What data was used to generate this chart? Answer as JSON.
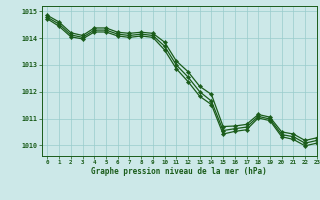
{
  "title": "Graphe pression niveau de la mer (hPa)",
  "background_color": "#cce8e8",
  "grid_color": "#99cccc",
  "line_color": "#1a5c1a",
  "marker_color": "#1a5c1a",
  "xlim": [
    -0.5,
    23
  ],
  "ylim": [
    1009.6,
    1015.2
  ],
  "yticks": [
    1010,
    1011,
    1012,
    1013,
    1014,
    1015
  ],
  "xticks": [
    0,
    1,
    2,
    3,
    4,
    5,
    6,
    7,
    8,
    9,
    10,
    11,
    12,
    13,
    14,
    15,
    16,
    17,
    18,
    19,
    20,
    21,
    22,
    23
  ],
  "series1_x": [
    0,
    1,
    2,
    3,
    4,
    5,
    6,
    7,
    8,
    9,
    10,
    11,
    12,
    13,
    14,
    15,
    16,
    17,
    18,
    19,
    20,
    21,
    22,
    23
  ],
  "series1_y": [
    1014.85,
    1014.6,
    1014.2,
    1014.1,
    1014.38,
    1014.38,
    1014.22,
    1014.18,
    1014.22,
    1014.18,
    1013.85,
    1013.15,
    1012.75,
    1012.2,
    1011.9,
    1010.7,
    1010.72,
    1010.78,
    1011.15,
    1011.05,
    1010.5,
    1010.42,
    1010.18,
    1010.28
  ],
  "series2_x": [
    0,
    1,
    2,
    3,
    4,
    5,
    6,
    7,
    8,
    9,
    10,
    11,
    12,
    13,
    14,
    15,
    16,
    17,
    18,
    19,
    20,
    21,
    22,
    23
  ],
  "series2_y": [
    1014.78,
    1014.52,
    1014.12,
    1014.03,
    1014.3,
    1014.3,
    1014.15,
    1014.1,
    1014.15,
    1014.1,
    1013.7,
    1013.0,
    1012.55,
    1012.0,
    1011.65,
    1010.55,
    1010.62,
    1010.68,
    1011.08,
    1010.98,
    1010.4,
    1010.32,
    1010.08,
    1010.18
  ],
  "series3_x": [
    0,
    1,
    2,
    3,
    4,
    5,
    6,
    7,
    8,
    9,
    10,
    11,
    12,
    13,
    14,
    15,
    16,
    17,
    18,
    19,
    20,
    21,
    22,
    23
  ],
  "series3_y": [
    1014.72,
    1014.44,
    1014.05,
    1013.97,
    1014.23,
    1014.23,
    1014.08,
    1014.03,
    1014.08,
    1014.03,
    1013.56,
    1012.86,
    1012.38,
    1011.83,
    1011.52,
    1010.42,
    1010.52,
    1010.58,
    1011.02,
    1010.92,
    1010.32,
    1010.22,
    1009.98,
    1010.08
  ]
}
